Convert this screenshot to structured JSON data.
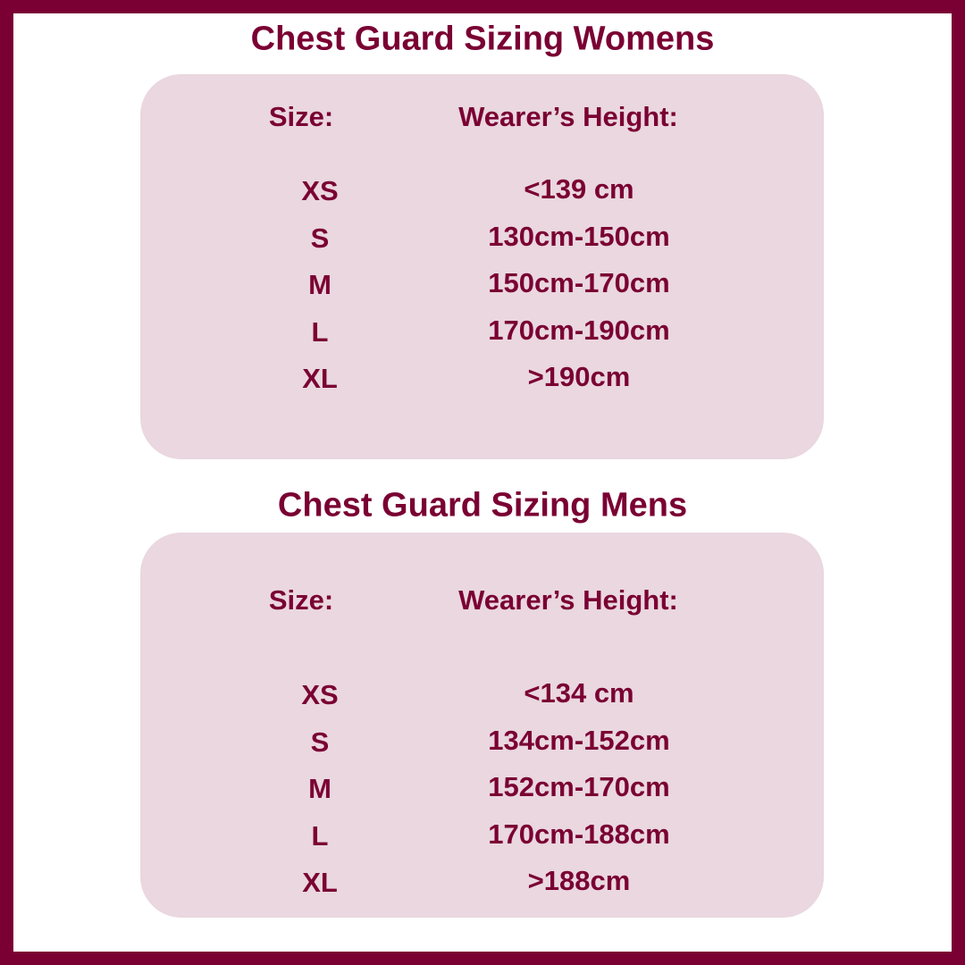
{
  "colors": {
    "accent": "#7a0033",
    "panel": "#ead7df",
    "background": "#ffffff"
  },
  "womens": {
    "title": "Chest Guard Sizing Womens",
    "size_header": "Size:",
    "height_header": "Wearer’s Height:",
    "rows": [
      {
        "size": "XS",
        "height": "<139 cm"
      },
      {
        "size": "S",
        "height": "130cm-150cm"
      },
      {
        "size": "M",
        "height": "150cm-170cm"
      },
      {
        "size": "L",
        "height": "170cm-190cm"
      },
      {
        "size": "XL",
        "height": ">190cm"
      }
    ]
  },
  "mens": {
    "title": "Chest Guard Sizing Mens",
    "size_header": "Size:",
    "height_header": "Wearer’s Height:",
    "rows": [
      {
        "size": "XS",
        "height": "<134 cm"
      },
      {
        "size": "S",
        "height": "134cm-152cm"
      },
      {
        "size": "M",
        "height": "152cm-170cm"
      },
      {
        "size": "L",
        "height": "170cm-188cm"
      },
      {
        "size": "XL",
        "height": ">188cm"
      }
    ]
  }
}
